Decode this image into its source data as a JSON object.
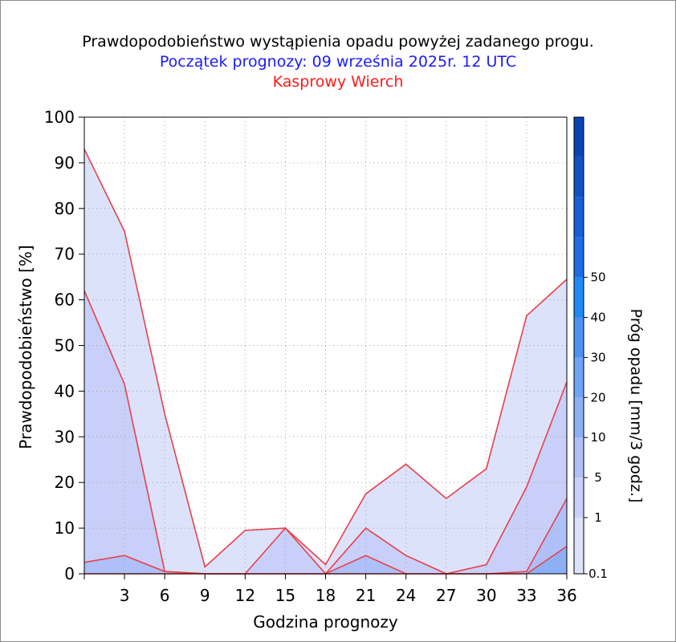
{
  "header": {
    "title": "Prawdopodobieństwo wystąpienia opadu powyżej zadanego progu.",
    "forecast_start": "Początek prognozy: 09 września 2025r. 12 UTC",
    "station": "Kasprowy Wierch"
  },
  "colors": {
    "title": "#000000",
    "forecast_start": "#1a1aff",
    "station": "#ff1a1a",
    "series_line": "#e8404a",
    "grid": "#a0a0a0",
    "scale": [
      "#dde2fb",
      "#c8d0fa",
      "#aec0f7",
      "#8db0f5",
      "#6fa3f4",
      "#4c92f3",
      "#1f8af6",
      "#1c6ee8",
      "#165fd8",
      "#1051c7",
      "#0a44b4"
    ]
  },
  "chart_data": {
    "type": "area",
    "xlabel": "Godzina prognozy",
    "ylabel": "Prawdopodobieństwo [%]",
    "x": [
      0,
      3,
      6,
      9,
      12,
      15,
      18,
      21,
      24,
      27,
      30,
      33,
      36
    ],
    "x_tick_labels": [
      "3",
      "6",
      "9",
      "12",
      "15",
      "18",
      "21",
      "24",
      "27",
      "30",
      "33",
      "36"
    ],
    "xlim": [
      0,
      36
    ],
    "ylim": [
      0,
      100
    ],
    "y_ticks": [
      0,
      10,
      20,
      30,
      40,
      50,
      60,
      70,
      80,
      90,
      100
    ],
    "grid": true,
    "series": [
      {
        "threshold": 0.1,
        "values": [
          93,
          75,
          35,
          1.5,
          9.5,
          10,
          2,
          17.5,
          24,
          16.5,
          23,
          56.5,
          64.5
        ]
      },
      {
        "threshold": 1,
        "values": [
          62,
          41.5,
          0.5,
          0,
          0,
          10,
          0,
          10,
          4,
          0,
          2,
          19,
          42
        ]
      },
      {
        "threshold": 5,
        "values": [
          2.5,
          4,
          0.5,
          0,
          0,
          0,
          0,
          4,
          0,
          0,
          0,
          0.5,
          16.5
        ]
      },
      {
        "threshold": 10,
        "values": [
          0,
          0,
          0,
          0,
          0,
          0,
          0,
          0,
          0,
          0,
          0,
          0,
          6
        ]
      }
    ],
    "colorbar": {
      "label": "Próg opadu [mm/3 godz.]",
      "tick_labels": [
        "0.1",
        "1",
        "5",
        "10",
        "20",
        "30",
        "40",
        "50"
      ]
    }
  }
}
